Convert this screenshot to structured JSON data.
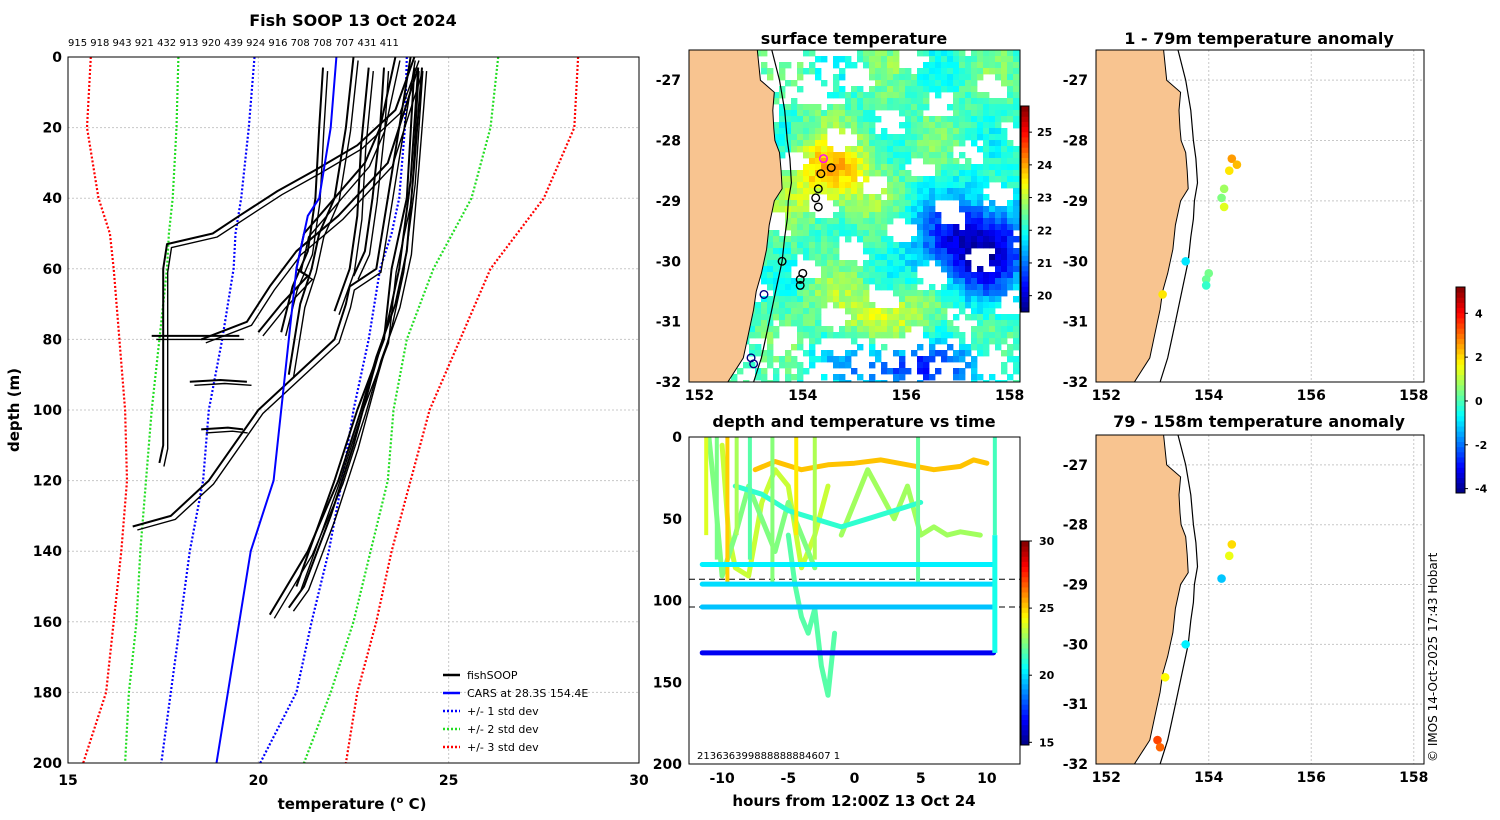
{
  "chart_data": [
    {
      "id": "profile",
      "type": "line",
      "title": "Fish SOOP 13 Oct 2024",
      "top_labels": "915 918 943 921 432 913 920 439 924 916 708 708 707 431 411",
      "xlabel": "temperature (",
      "xlabel_sup": "o",
      "xlabel_tail": " C)",
      "ylabel": "depth (m)",
      "xlim": [
        15,
        30
      ],
      "ylim": [
        0,
        200
      ],
      "xticks": [
        "15",
        "20",
        "25",
        "30"
      ],
      "yticks": [
        "0",
        "20",
        "40",
        "60",
        "80",
        "100",
        "120",
        "140",
        "160",
        "180",
        "200"
      ],
      "legend": [
        {
          "label": "fishSOOP",
          "color": "#000000",
          "style": "solid"
        },
        {
          "label": "CARS at 28.3S 154.4E",
          "color": "#0000ff",
          "style": "solid"
        },
        {
          "label": "+/- 1 std dev",
          "color": "#0000ff",
          "style": "dotted"
        },
        {
          "label": "+/- 2 std dev",
          "color": "#22dd22",
          "style": "dotted"
        },
        {
          "label": "+/- 3 std dev",
          "color": "#ff0000",
          "style": "dotted"
        }
      ],
      "cars_mean": {
        "depth": [
          0,
          20,
          40,
          45,
          60,
          80,
          100,
          120,
          130,
          140,
          160,
          180,
          200
        ],
        "temp": [
          22.05,
          21.9,
          21.6,
          21.3,
          21.0,
          20.8,
          20.6,
          20.4,
          20.1,
          19.8,
          19.5,
          19.2,
          18.9
        ]
      },
      "std_dev": [
        {
          "color": "#0000ff",
          "depth": [
            0,
            20,
            40,
            50,
            60,
            80,
            100,
            120,
            140,
            160,
            180,
            200
          ],
          "left": [
            19.9,
            19.75,
            19.55,
            19.4,
            19.35,
            19.05,
            18.7,
            18.55,
            18.2,
            17.95,
            17.7,
            17.45
          ],
          "right": [
            23.9,
            23.85,
            23.7,
            23.5,
            23.2,
            22.9,
            22.5,
            22.2,
            21.85,
            21.4,
            21.0,
            20.05
          ]
        },
        {
          "color": "#22dd22",
          "depth": [
            0,
            20,
            40,
            50,
            60,
            80,
            100,
            120,
            140,
            160,
            180,
            200
          ],
          "left": [
            17.9,
            17.85,
            17.75,
            17.65,
            17.6,
            17.4,
            17.2,
            17.05,
            16.9,
            16.8,
            16.6,
            16.5
          ],
          "right": [
            26.3,
            26.1,
            25.6,
            25.1,
            24.6,
            23.9,
            23.55,
            23.4,
            22.95,
            22.5,
            21.9,
            21.2
          ]
        },
        {
          "color": "#ff0000",
          "depth": [
            0,
            20,
            40,
            50,
            60,
            80,
            100,
            120,
            140,
            160,
            180,
            200
          ],
          "left": [
            15.6,
            15.5,
            15.8,
            16.1,
            16.2,
            16.35,
            16.5,
            16.55,
            16.4,
            16.2,
            16.0,
            15.4
          ],
          "right": [
            28.4,
            28.3,
            27.5,
            26.8,
            26.1,
            25.3,
            24.5,
            24.0,
            23.5,
            23.1,
            22.6,
            22.3
          ]
        }
      ],
      "profiles": [
        {
          "depth": [
            0,
            15,
            25,
            32,
            38,
            45,
            50,
            53,
            60,
            80,
            110,
            115
          ],
          "temp": [
            24.1,
            23.6,
            22.6,
            21.5,
            20.5,
            19.5,
            18.8,
            17.6,
            17.5,
            17.5,
            17.5,
            17.4
          ]
        },
        {
          "depth": [
            0,
            20,
            30,
            40,
            50,
            60,
            62,
            70,
            78
          ],
          "temp": [
            23.6,
            23.2,
            22.8,
            22.0,
            21.2,
            21.0,
            21.3,
            20.6,
            20.0
          ]
        },
        {
          "depth": [
            0,
            20,
            40,
            60,
            65,
            70,
            80,
            100,
            120,
            130,
            133
          ],
          "temp": [
            24.0,
            23.7,
            23.4,
            23.1,
            22.4,
            22.3,
            22.0,
            20.0,
            18.7,
            17.7,
            16.7
          ]
        },
        {
          "depth": [
            0,
            20,
            40,
            50,
            60,
            70,
            90
          ],
          "temp": [
            22.5,
            22.3,
            22.0,
            21.6,
            21.4,
            21.1,
            20.8
          ]
        },
        {
          "depth": [
            3,
            20,
            40,
            55,
            65,
            78
          ],
          "temp": [
            21.7,
            21.6,
            21.5,
            21.3,
            20.9,
            20.6
          ]
        },
        {
          "depth": [
            3,
            25,
            45,
            60,
            72
          ],
          "temp": [
            22.9,
            22.7,
            22.6,
            22.4,
            22.0
          ]
        },
        {
          "depth": [
            3,
            20,
            40,
            55,
            62
          ],
          "temp": [
            23.3,
            23.2,
            23.0,
            22.8,
            22.5
          ]
        },
        {
          "depth": [
            3,
            30,
            55,
            70,
            85,
            100,
            120,
            140,
            158
          ],
          "temp": [
            24.3,
            24.1,
            23.9,
            23.6,
            23.1,
            22.7,
            22.1,
            21.3,
            20.3
          ]
        },
        {
          "depth": [
            3,
            35,
            60,
            75,
            90,
            110,
            130,
            150,
            156
          ],
          "temp": [
            24.2,
            24.0,
            23.7,
            23.4,
            23.0,
            22.5,
            21.9,
            21.2,
            20.8
          ]
        },
        {
          "depth": [
            3,
            40,
            60,
            80,
            100,
            120,
            150
          ],
          "temp": [
            24.1,
            23.9,
            23.5,
            23.3,
            22.6,
            22.0,
            21.0
          ]
        },
        {
          "depth": [
            3,
            30,
            45,
            55,
            65,
            75,
            80
          ],
          "temp": [
            24.2,
            23.4,
            22.1,
            21.0,
            20.3,
            19.7,
            18.5
          ]
        },
        {
          "depth": [
            79,
            79,
            79
          ],
          "temp": [
            17.2,
            18.5,
            19.5
          ]
        },
        {
          "depth": [
            92,
            91.5,
            92
          ],
          "temp": [
            18.2,
            19.0,
            19.7
          ]
        },
        {
          "depth": [
            105.5,
            105,
            105.5
          ],
          "temp": [
            18.5,
            19.2,
            19.6
          ]
        }
      ]
    },
    {
      "id": "surface-temp",
      "type": "heatmap",
      "title": "surface temperature",
      "xticks": [
        "152",
        "154",
        "156",
        "158"
      ],
      "yticks": [
        "-27",
        "-28",
        "-29",
        "-30",
        "-31",
        "-32"
      ],
      "xlim": [
        151.8,
        158.2
      ],
      "ylim": [
        -32,
        -26.5
      ],
      "colorbar": {
        "range": [
          19.5,
          25.8
        ],
        "ticks": [
          "20",
          "21",
          "22",
          "23",
          "24",
          "25"
        ]
      },
      "stations": [
        {
          "lon": 154.4,
          "lat": -28.3,
          "ring": "#ff00ff"
        },
        {
          "lon": 154.55,
          "lat": -28.45,
          "ring": "#000000"
        },
        {
          "lon": 154.35,
          "lat": -28.55,
          "ring": "#000000"
        },
        {
          "lon": 154.3,
          "lat": -28.8,
          "ring": "#000000"
        },
        {
          "lon": 154.25,
          "lat": -28.95,
          "ring": "#000000"
        },
        {
          "lon": 154.3,
          "lat": -29.1,
          "ring": "#000000"
        },
        {
          "lon": 153.6,
          "lat": -30.0,
          "ring": "#000000"
        },
        {
          "lon": 154.0,
          "lat": -30.2,
          "ring": "#000000"
        },
        {
          "lon": 153.95,
          "lat": -30.3,
          "ring": "#000000"
        },
        {
          "lon": 153.95,
          "lat": -30.4,
          "ring": "#000000"
        },
        {
          "lon": 153.25,
          "lat": -30.55,
          "ring": "#000080"
        },
        {
          "lon": 153.0,
          "lat": -31.6,
          "ring": "#000080"
        },
        {
          "lon": 153.05,
          "lat": -31.7,
          "ring": "#000080"
        }
      ]
    },
    {
      "id": "depth-time",
      "type": "scatter",
      "title": "depth and temperature vs time",
      "xlabel": "hours from 12:00Z 13 Oct 24",
      "xlim": [
        -12.5,
        12.5
      ],
      "ylim": [
        0,
        200
      ],
      "xticks": [
        "-10",
        "-5",
        "0",
        "5",
        "10"
      ],
      "yticks": [
        "0",
        "50",
        "100",
        "150",
        "200"
      ],
      "colorbar": {
        "range": [
          14.8,
          30
        ],
        "ticks": [
          "15",
          "20",
          "25",
          "30"
        ]
      },
      "bottom_text": "213636399888888884607 1",
      "dashed_depths": [
        87,
        104
      ],
      "bands": [
        {
          "depth": 78,
          "t0": -11.5,
          "t1": 10.5,
          "temp": 20.3
        },
        {
          "depth": 90,
          "t0": -11.5,
          "t1": 10.5,
          "temp": 20.0
        },
        {
          "depth": 104,
          "t0": -11.5,
          "t1": 10.5,
          "temp": 19.6
        },
        {
          "depth": 132,
          "t0": -11.5,
          "t1": 10.5,
          "temp": 16.5
        }
      ],
      "tracks": [
        {
          "temp": 25.2,
          "time": [
            -7.5,
            -6,
            -4,
            -2,
            0,
            2,
            4,
            6,
            8,
            9,
            10
          ],
          "depth": [
            20,
            15,
            20,
            17,
            16,
            14,
            17,
            20,
            18,
            14,
            16
          ]
        },
        {
          "temp": 23.5,
          "time": [
            -10,
            -9.5,
            -9,
            -8,
            -7,
            -6,
            -5,
            -4,
            -3,
            -2
          ],
          "depth": [
            5,
            60,
            80,
            85,
            40,
            20,
            30,
            80,
            60,
            30
          ]
        },
        {
          "temp": 22.4,
          "time": [
            -11,
            -10.5,
            -10,
            -9,
            -8,
            -7,
            -6,
            -5,
            -4,
            -3
          ],
          "depth": [
            0,
            40,
            85,
            60,
            30,
            50,
            70,
            40,
            60,
            80
          ]
        },
        {
          "temp": 21.8,
          "time": [
            -5,
            -4.5,
            -4,
            -3.5,
            -3,
            -2.5,
            -2,
            -1.5
          ],
          "depth": [
            60,
            90,
            110,
            120,
            105,
            140,
            158,
            120
          ]
        },
        {
          "temp": 22.9,
          "time": [
            -1,
            0,
            1,
            2,
            3,
            4,
            5,
            6,
            7,
            8,
            9.5
          ],
          "depth": [
            60,
            40,
            20,
            35,
            50,
            30,
            60,
            55,
            60,
            58,
            60
          ]
        },
        {
          "temp": 21.2,
          "time": [
            -9,
            -7,
            -5,
            -3,
            -1,
            1,
            3,
            5
          ],
          "depth": [
            30,
            35,
            45,
            50,
            55,
            50,
            45,
            40
          ]
        }
      ]
    },
    {
      "id": "anomaly-upper",
      "type": "scatter",
      "title": "1 - 79m temperature anomaly",
      "xticks": [
        "152",
        "154",
        "156",
        "158"
      ],
      "yticks": [
        "-27",
        "-28",
        "-29",
        "-30",
        "-31",
        "-32"
      ],
      "xlim": [
        151.8,
        158.2
      ],
      "ylim": [
        -32,
        -26.5
      ],
      "points": [
        {
          "lon": 154.45,
          "lat": -28.3,
          "anom": 2.6
        },
        {
          "lon": 154.55,
          "lat": -28.4,
          "anom": 2.3
        },
        {
          "lon": 154.4,
          "lat": -28.5,
          "anom": 1.9
        },
        {
          "lon": 154.3,
          "lat": -28.8,
          "anom": 0.8
        },
        {
          "lon": 154.25,
          "lat": -28.95,
          "anom": 0.5
        },
        {
          "lon": 154.3,
          "lat": -29.1,
          "anom": 1.4
        },
        {
          "lon": 153.55,
          "lat": -30.0,
          "anom": -0.9
        },
        {
          "lon": 154.0,
          "lat": -30.2,
          "anom": 0.4
        },
        {
          "lon": 153.95,
          "lat": -30.3,
          "anom": 0.3
        },
        {
          "lon": 153.95,
          "lat": -30.4,
          "anom": -0.2
        },
        {
          "lon": 153.1,
          "lat": -30.55,
          "anom": 1.9
        }
      ]
    },
    {
      "id": "anomaly-lower",
      "type": "scatter",
      "title": "79 - 158m temperature anomaly",
      "xticks": [
        "152",
        "154",
        "156",
        "158"
      ],
      "yticks": [
        "-27",
        "-28",
        "-29",
        "-30",
        "-31",
        "-32"
      ],
      "xlim": [
        151.8,
        158.2
      ],
      "ylim": [
        -32,
        -26.5
      ],
      "points": [
        {
          "lon": 154.45,
          "lat": -28.33,
          "anom": 2.0
        },
        {
          "lon": 154.4,
          "lat": -28.52,
          "anom": 1.5
        },
        {
          "lon": 154.25,
          "lat": -28.9,
          "anom": -1.2
        },
        {
          "lon": 153.55,
          "lat": -30.0,
          "anom": -0.8
        },
        {
          "lon": 153.15,
          "lat": -30.55,
          "anom": 1.7
        },
        {
          "lon": 153.0,
          "lat": -31.6,
          "anom": 3.4
        },
        {
          "lon": 153.05,
          "lat": -31.72,
          "anom": 3.1
        }
      ],
      "colorbar": {
        "range": [
          -4.2,
          5.2
        ],
        "ticks": [
          "4",
          "2",
          "0",
          "-2",
          "-4"
        ]
      }
    }
  ],
  "credit": "© IMOS 14-Oct-2025 17:43 Hobart"
}
